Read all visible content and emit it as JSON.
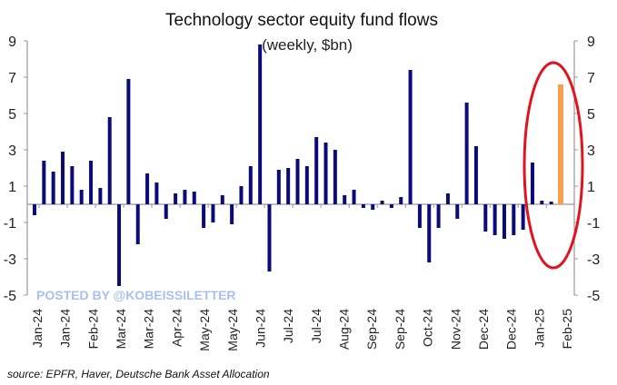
{
  "chart_data": {
    "type": "bar",
    "title": "Technology sector equity fund flows",
    "subtitle": "(weekly, $bn)",
    "xlabel": "",
    "ylabel": "",
    "ylim": [
      -5,
      9
    ],
    "yticks": [
      9,
      7,
      5,
      3,
      1,
      -1,
      -3,
      -5
    ],
    "xtick_labels": [
      "Jan-24",
      "Jan-24",
      "Feb-24",
      "Mar-24",
      "Mar-24",
      "Apr-24",
      "May-24",
      "May-24",
      "Jun-24",
      "Jul-24",
      "Jul-24",
      "Aug-24",
      "Sep-24",
      "Sep-24",
      "Oct-24",
      "Nov-24",
      "Dec-24",
      "Dec-24",
      "Jan-25",
      "Feb-25"
    ],
    "values": [
      -0.6,
      2.4,
      1.8,
      2.9,
      2.1,
      0.8,
      2.4,
      0.9,
      4.8,
      -4.5,
      6.9,
      -2.2,
      1.7,
      1.2,
      -0.8,
      0.6,
      0.8,
      0.7,
      -1.3,
      -1.0,
      0.5,
      -1.1,
      1.0,
      2.1,
      8.8,
      -3.7,
      1.9,
      2.0,
      2.5,
      2.1,
      3.7,
      3.4,
      3.0,
      0.5,
      0.8,
      -0.2,
      -0.3,
      0.2,
      -0.2,
      0.4,
      7.4,
      -1.3,
      -3.2,
      -1.3,
      0.6,
      -0.8,
      5.6,
      3.2,
      -1.5,
      -1.7,
      -1.9,
      -1.7,
      -1.4,
      2.3,
      0.2,
      0.15,
      6.6
    ],
    "highlight_index": 56,
    "colors": {
      "bar": "#0a0a7a",
      "highlight": "#f7a04a",
      "circle": "#e0141e",
      "axis": "#999999"
    },
    "grid": false,
    "annotation": "red ellipse around latest weeks"
  },
  "watermark": "POSTED BY @KOBEISSILETTER",
  "source": "source: EPFR, Haver, Deutsche Bank Asset Allocation"
}
